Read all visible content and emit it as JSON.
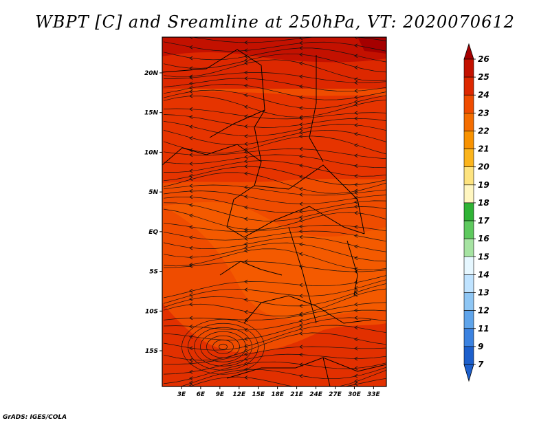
{
  "title": "WBPT [C] and Sreamline at 250hPa, VT: 2020070612",
  "footer": "GrADS: IGES/COLA",
  "map": {
    "lat_labels": [
      "20N",
      "15N",
      "10N",
      "5N",
      "EQ",
      "5S",
      "10S",
      "15S"
    ],
    "lat_values": [
      20,
      15,
      10,
      5,
      0,
      -5,
      -10,
      -15
    ],
    "lon_labels": [
      "3E",
      "6E",
      "9E",
      "12E",
      "15E",
      "18E",
      "21E",
      "24E",
      "27E",
      "30E",
      "33E"
    ],
    "lon_values": [
      3,
      6,
      9,
      12,
      15,
      18,
      21,
      24,
      27,
      30,
      33
    ],
    "lon_range": [
      0,
      35
    ],
    "lat_range": [
      -19.5,
      24.5
    ]
  },
  "colorbar": {
    "labels": [
      "26",
      "25",
      "24",
      "23",
      "22",
      "21",
      "20",
      "19",
      "18",
      "17",
      "16",
      "15",
      "14",
      "13",
      "12",
      "11",
      "9",
      "7"
    ],
    "colors": [
      "#a50000",
      "#c31100",
      "#dd2800",
      "#ef4c00",
      "#f46d00",
      "#f89200",
      "#fbb41c",
      "#fde37f",
      "#fff6c0",
      "#2fb335",
      "#5ec95e",
      "#a6e3a2",
      "#e6f7ff",
      "#bfe3ff",
      "#8ec6f4",
      "#5fa4ea",
      "#3b82e0",
      "#1c5fcc"
    ]
  }
}
